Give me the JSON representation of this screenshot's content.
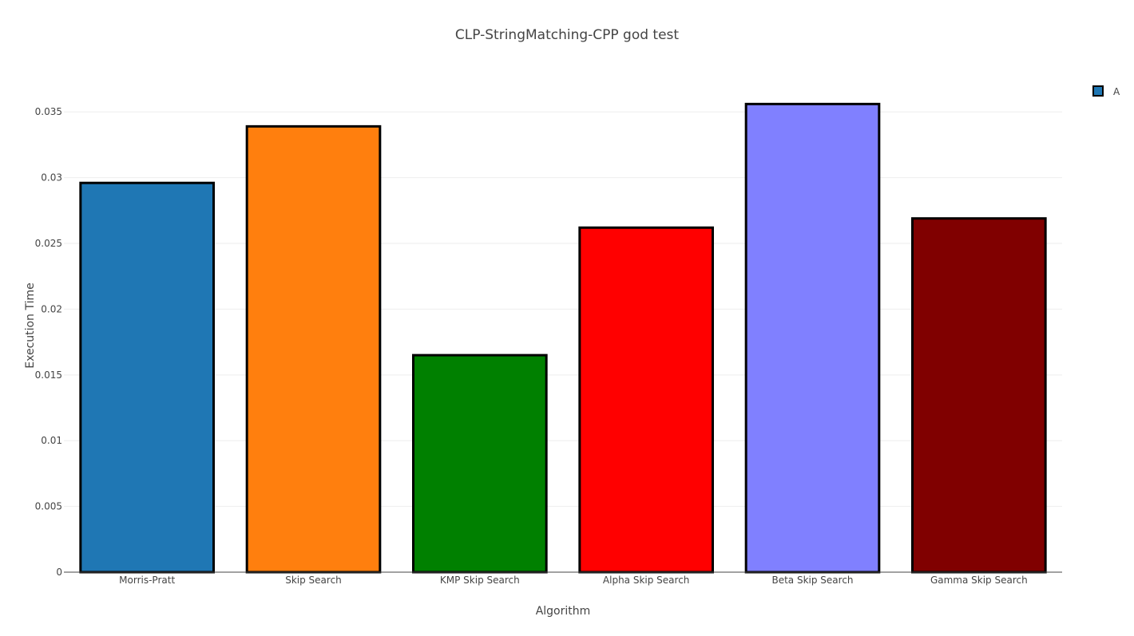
{
  "chart_data": {
    "type": "bar",
    "title": "CLP-StringMatching-CPP god test",
    "xlabel": "Algorithm",
    "ylabel": "Execution Time",
    "categories": [
      "Morris-Pratt",
      "Skip Search",
      "KMP Skip Search",
      "Alpha Skip Search",
      "Beta Skip Search",
      "Gamma Skip Search"
    ],
    "series": [
      {
        "name": "A",
        "values": [
          0.0296,
          0.0339,
          0.0165,
          0.0262,
          0.0356,
          0.0269
        ]
      }
    ],
    "bar_colors": [
      "#1f77b4",
      "#ff7f0e",
      "#008000",
      "#ff0000",
      "#8080ff",
      "#800000"
    ],
    "bar_outline_color": "#000000",
    "ylim": [
      0,
      0.035
    ],
    "yticks": [
      0,
      0.005,
      0.01,
      0.015,
      0.02,
      0.025,
      0.03,
      0.035
    ],
    "ytick_labels": [
      "0",
      "0.005",
      "0.01",
      "0.015",
      "0.02",
      "0.025",
      "0.03",
      "0.035"
    ],
    "grid": true,
    "legend_position": "top-right",
    "legend_swatch_color": "#1f77b4"
  }
}
